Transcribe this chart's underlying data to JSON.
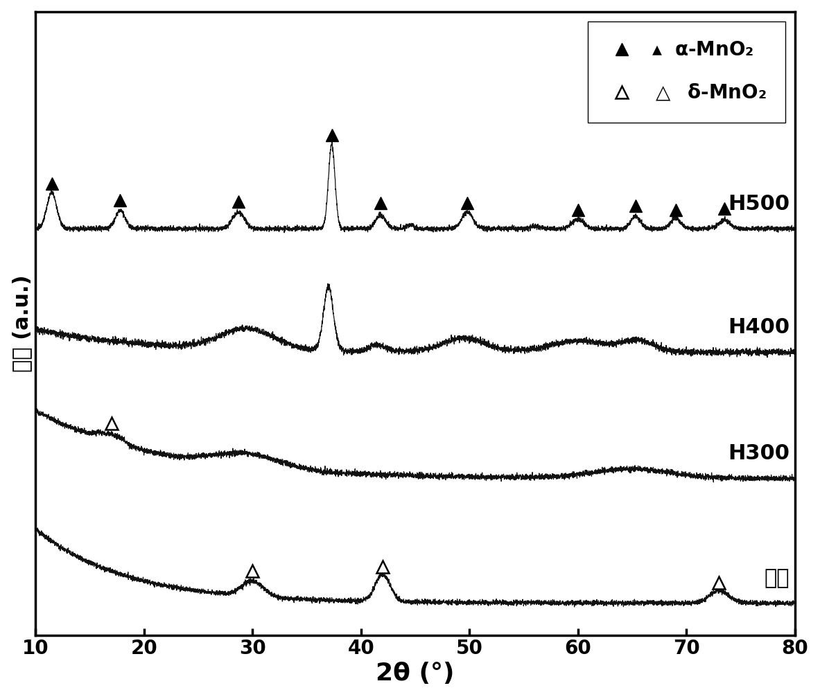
{
  "title": "",
  "xlabel": "2θ (°)",
  "ylabel": "强度 (a.u.)",
  "xlim": [
    10,
    80
  ],
  "ylim": [
    -0.5,
    10.5
  ],
  "x_ticks": [
    10,
    20,
    30,
    40,
    50,
    60,
    70,
    80
  ],
  "curve_labels": [
    "前体",
    "H300",
    "H400",
    "H500"
  ],
  "offsets": [
    0.0,
    2.2,
    4.4,
    6.6
  ],
  "legend_label1": "α-MnO₂",
  "legend_label2": "δ-MnO₂",
  "curve_color": "#111111",
  "noise_level_low": 0.025,
  "noise_level_high": 0.05,
  "label_fontsize": 22,
  "tick_fontsize": 20,
  "legend_fontsize": 20,
  "curve_linewidth": 0.9,
  "background_color": "#ffffff",
  "curve_scale": [
    1.4,
    1.3,
    1.3,
    1.6
  ]
}
